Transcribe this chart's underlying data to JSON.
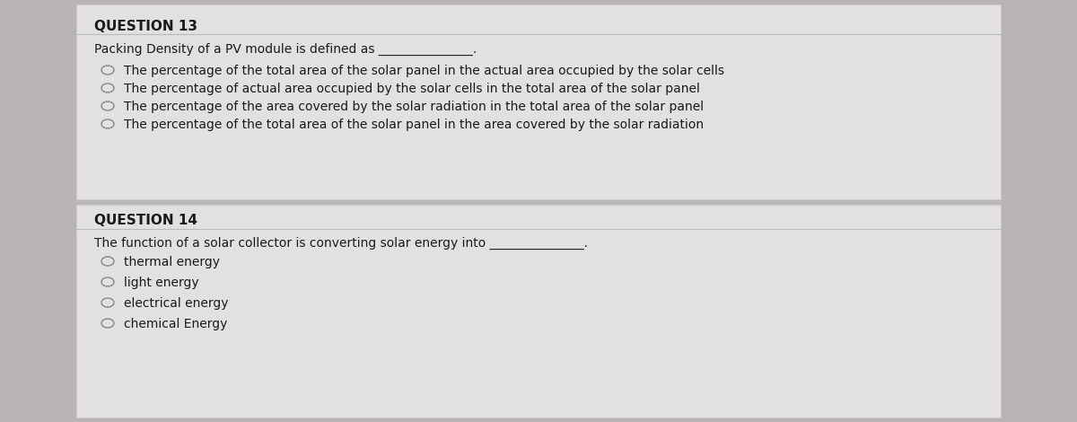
{
  "bg_color": "#b8b4b4",
  "panel_color": "#e2e0e0",
  "separator_color": "#c0bebe",
  "title1": "QUESTION 13",
  "title2": "QUESTION 14",
  "q13_stem": "Packing Density of a PV module is defined as _______________.",
  "q13_options": [
    "The percentage of the total area of the solar panel in the actual area occupied by the solar cells",
    "The percentage of actual area occupied by the solar cells in the total area of the solar panel",
    "The percentage of the area covered by the solar radiation in the total area of the solar panel",
    "The percentage of the total area of the solar panel in the area covered by the solar radiation"
  ],
  "q14_stem": "The function of a solar collector is converting solar energy into _______________.",
  "q14_options": [
    "thermal energy",
    "light energy",
    "electrical energy",
    "chemical Energy"
  ],
  "title_fontsize": 11,
  "body_fontsize": 10,
  "text_color": "#1a1a1a",
  "circle_color": "#888888",
  "line_color": "#bbbbbb"
}
